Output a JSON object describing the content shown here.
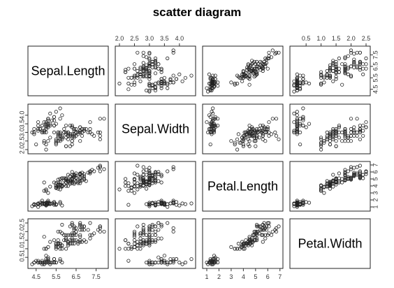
{
  "chart_data": {
    "type": "scatter",
    "title": "scatter diagram",
    "variables": [
      "Sepal.Length",
      "Sepal.Width",
      "Petal.Length",
      "Petal.Width"
    ],
    "ranges": [
      [
        4.3,
        7.9
      ],
      [
        2.0,
        4.4
      ],
      [
        1.0,
        6.9
      ],
      [
        0.1,
        2.5
      ]
    ],
    "ticks": [
      [
        4.5,
        5.5,
        6.5,
        7.5
      ],
      [
        2.0,
        2.5,
        3.0,
        3.5,
        4.0
      ],
      [
        1,
        2,
        3,
        4,
        5,
        6,
        7
      ],
      [
        0.5,
        1.0,
        1.5,
        2.0,
        2.5
      ]
    ],
    "tick_labels": [
      [
        "4.5",
        "5.5",
        "6.5",
        "7.5"
      ],
      [
        "2.0",
        "2.5",
        "3.0",
        "3.5",
        "4.0"
      ],
      [
        "1",
        "2",
        "3",
        "4",
        "5",
        "6",
        "7"
      ],
      [
        "0.5",
        "1.0",
        "1.5",
        "2.0",
        "2.5"
      ]
    ],
    "marker": "open-circle",
    "point_color": "#222222",
    "observations": [
      [
        5.1,
        3.5,
        1.4,
        0.2
      ],
      [
        4.9,
        3.0,
        1.4,
        0.2
      ],
      [
        4.7,
        3.2,
        1.3,
        0.2
      ],
      [
        4.6,
        3.1,
        1.5,
        0.2
      ],
      [
        5.0,
        3.6,
        1.4,
        0.2
      ],
      [
        5.4,
        3.9,
        1.7,
        0.4
      ],
      [
        4.6,
        3.4,
        1.4,
        0.3
      ],
      [
        5.0,
        3.4,
        1.5,
        0.2
      ],
      [
        4.4,
        2.9,
        1.4,
        0.2
      ],
      [
        4.9,
        3.1,
        1.5,
        0.1
      ],
      [
        5.4,
        3.7,
        1.5,
        0.2
      ],
      [
        4.8,
        3.4,
        1.6,
        0.2
      ],
      [
        4.8,
        3.0,
        1.4,
        0.1
      ],
      [
        4.3,
        3.0,
        1.1,
        0.1
      ],
      [
        5.8,
        4.0,
        1.2,
        0.2
      ],
      [
        5.7,
        4.4,
        1.5,
        0.4
      ],
      [
        5.4,
        3.9,
        1.3,
        0.4
      ],
      [
        5.1,
        3.5,
        1.4,
        0.3
      ],
      [
        5.7,
        3.8,
        1.7,
        0.3
      ],
      [
        5.1,
        3.8,
        1.5,
        0.3
      ],
      [
        5.4,
        3.4,
        1.7,
        0.2
      ],
      [
        5.1,
        3.7,
        1.5,
        0.4
      ],
      [
        4.6,
        3.6,
        1.0,
        0.2
      ],
      [
        5.1,
        3.3,
        1.7,
        0.5
      ],
      [
        4.8,
        3.4,
        1.9,
        0.2
      ],
      [
        5.0,
        3.0,
        1.6,
        0.2
      ],
      [
        5.0,
        3.4,
        1.6,
        0.4
      ],
      [
        5.2,
        3.5,
        1.5,
        0.2
      ],
      [
        5.2,
        3.4,
        1.4,
        0.2
      ],
      [
        4.7,
        3.2,
        1.6,
        0.2
      ],
      [
        4.8,
        3.1,
        1.6,
        0.2
      ],
      [
        5.4,
        3.4,
        1.5,
        0.4
      ],
      [
        5.2,
        4.1,
        1.5,
        0.1
      ],
      [
        5.5,
        4.2,
        1.4,
        0.2
      ],
      [
        4.9,
        3.1,
        1.5,
        0.2
      ],
      [
        5.0,
        3.2,
        1.2,
        0.2
      ],
      [
        5.5,
        3.5,
        1.3,
        0.2
      ],
      [
        4.9,
        3.6,
        1.4,
        0.1
      ],
      [
        4.4,
        3.0,
        1.3,
        0.2
      ],
      [
        5.1,
        3.4,
        1.5,
        0.2
      ],
      [
        5.0,
        3.5,
        1.3,
        0.3
      ],
      [
        4.5,
        2.3,
        1.3,
        0.3
      ],
      [
        4.4,
        3.2,
        1.3,
        0.2
      ],
      [
        5.0,
        3.5,
        1.6,
        0.6
      ],
      [
        5.1,
        3.8,
        1.9,
        0.4
      ],
      [
        4.8,
        3.0,
        1.4,
        0.3
      ],
      [
        5.1,
        3.8,
        1.6,
        0.2
      ],
      [
        4.6,
        3.2,
        1.4,
        0.2
      ],
      [
        5.3,
        3.7,
        1.5,
        0.2
      ],
      [
        5.0,
        3.3,
        1.4,
        0.2
      ],
      [
        7.0,
        3.2,
        4.7,
        1.4
      ],
      [
        6.4,
        3.2,
        4.5,
        1.5
      ],
      [
        6.9,
        3.1,
        4.9,
        1.5
      ],
      [
        5.5,
        2.3,
        4.0,
        1.3
      ],
      [
        6.5,
        2.8,
        4.6,
        1.5
      ],
      [
        5.7,
        2.8,
        4.5,
        1.3
      ],
      [
        6.3,
        3.3,
        4.7,
        1.6
      ],
      [
        4.9,
        2.4,
        3.3,
        1.0
      ],
      [
        6.6,
        2.9,
        4.6,
        1.3
      ],
      [
        5.2,
        2.7,
        3.9,
        1.4
      ],
      [
        5.0,
        2.0,
        3.5,
        1.0
      ],
      [
        5.9,
        3.0,
        4.2,
        1.5
      ],
      [
        6.0,
        2.2,
        4.0,
        1.0
      ],
      [
        6.1,
        2.9,
        4.7,
        1.4
      ],
      [
        5.6,
        2.9,
        3.6,
        1.3
      ],
      [
        6.7,
        3.1,
        4.4,
        1.4
      ],
      [
        5.6,
        3.0,
        4.5,
        1.5
      ],
      [
        5.8,
        2.7,
        4.1,
        1.0
      ],
      [
        6.2,
        2.2,
        4.5,
        1.5
      ],
      [
        5.6,
        2.5,
        3.9,
        1.1
      ],
      [
        5.9,
        3.2,
        4.8,
        1.8
      ],
      [
        6.1,
        2.8,
        4.0,
        1.3
      ],
      [
        6.3,
        2.5,
        4.9,
        1.5
      ],
      [
        6.1,
        2.8,
        4.7,
        1.2
      ],
      [
        6.4,
        2.9,
        4.3,
        1.3
      ],
      [
        6.6,
        3.0,
        4.4,
        1.4
      ],
      [
        6.8,
        2.8,
        4.8,
        1.4
      ],
      [
        6.7,
        3.0,
        5.0,
        1.7
      ],
      [
        6.0,
        2.9,
        4.5,
        1.5
      ],
      [
        5.7,
        2.6,
        3.5,
        1.0
      ],
      [
        5.5,
        2.4,
        3.8,
        1.1
      ],
      [
        5.5,
        2.4,
        3.7,
        1.0
      ],
      [
        5.8,
        2.7,
        3.9,
        1.2
      ],
      [
        6.0,
        2.7,
        5.1,
        1.6
      ],
      [
        5.4,
        3.0,
        4.5,
        1.5
      ],
      [
        6.0,
        3.4,
        4.5,
        1.6
      ],
      [
        6.7,
        3.1,
        4.7,
        1.5
      ],
      [
        6.3,
        2.3,
        4.4,
        1.3
      ],
      [
        5.6,
        3.0,
        4.1,
        1.3
      ],
      [
        5.5,
        2.5,
        4.0,
        1.3
      ],
      [
        5.5,
        2.6,
        4.4,
        1.2
      ],
      [
        6.1,
        3.0,
        4.6,
        1.4
      ],
      [
        5.8,
        2.6,
        4.0,
        1.2
      ],
      [
        5.0,
        2.3,
        3.3,
        1.0
      ],
      [
        5.6,
        2.7,
        4.2,
        1.3
      ],
      [
        5.7,
        3.0,
        4.2,
        1.2
      ],
      [
        5.7,
        2.9,
        4.2,
        1.3
      ],
      [
        6.2,
        2.9,
        4.3,
        1.3
      ],
      [
        5.1,
        2.5,
        3.0,
        1.1
      ],
      [
        5.7,
        2.8,
        4.1,
        1.3
      ],
      [
        6.3,
        3.3,
        6.0,
        2.5
      ],
      [
        5.8,
        2.7,
        5.1,
        1.9
      ],
      [
        7.1,
        3.0,
        5.9,
        2.1
      ],
      [
        6.3,
        2.9,
        5.6,
        1.8
      ],
      [
        6.5,
        3.0,
        5.8,
        2.2
      ],
      [
        7.6,
        3.0,
        6.6,
        2.1
      ],
      [
        4.9,
        2.5,
        4.5,
        1.7
      ],
      [
        7.3,
        2.9,
        6.3,
        1.8
      ],
      [
        6.7,
        2.5,
        5.8,
        1.8
      ],
      [
        7.2,
        3.6,
        6.1,
        2.5
      ],
      [
        6.5,
        3.2,
        5.1,
        2.0
      ],
      [
        6.4,
        2.7,
        5.3,
        1.9
      ],
      [
        6.8,
        3.0,
        5.5,
        2.1
      ],
      [
        5.7,
        2.5,
        5.0,
        2.0
      ],
      [
        5.8,
        2.8,
        5.1,
        2.4
      ],
      [
        6.4,
        3.2,
        5.3,
        2.3
      ],
      [
        6.5,
        3.0,
        5.5,
        1.8
      ],
      [
        7.7,
        3.8,
        6.7,
        2.2
      ],
      [
        7.7,
        2.6,
        6.9,
        2.3
      ],
      [
        6.0,
        2.2,
        5.0,
        1.5
      ],
      [
        6.9,
        3.2,
        5.7,
        2.3
      ],
      [
        5.6,
        2.8,
        4.9,
        2.0
      ],
      [
        7.7,
        2.8,
        6.7,
        2.0
      ],
      [
        6.3,
        2.7,
        4.9,
        1.8
      ],
      [
        6.7,
        3.3,
        5.7,
        2.1
      ],
      [
        7.2,
        3.2,
        6.0,
        1.8
      ],
      [
        6.2,
        2.8,
        4.8,
        1.8
      ],
      [
        6.1,
        3.0,
        4.9,
        1.8
      ],
      [
        6.4,
        2.8,
        5.6,
        2.1
      ],
      [
        7.2,
        3.0,
        5.8,
        1.6
      ],
      [
        7.4,
        2.8,
        6.1,
        1.9
      ],
      [
        7.9,
        3.8,
        6.4,
        2.0
      ],
      [
        6.4,
        2.8,
        5.6,
        2.2
      ],
      [
        6.3,
        2.8,
        5.1,
        1.5
      ],
      [
        6.1,
        2.6,
        5.6,
        1.4
      ],
      [
        7.7,
        3.0,
        6.1,
        2.3
      ],
      [
        6.3,
        3.4,
        5.6,
        2.4
      ],
      [
        6.4,
        3.1,
        5.5,
        1.8
      ],
      [
        6.0,
        3.0,
        4.8,
        1.8
      ],
      [
        6.9,
        3.1,
        5.4,
        2.1
      ],
      [
        6.7,
        3.1,
        5.6,
        2.4
      ],
      [
        6.9,
        3.1,
        5.1,
        2.3
      ],
      [
        5.8,
        2.7,
        5.1,
        1.9
      ],
      [
        6.8,
        3.2,
        5.9,
        2.3
      ],
      [
        6.7,
        3.3,
        5.7,
        2.5
      ],
      [
        6.7,
        3.0,
        5.2,
        2.3
      ],
      [
        6.3,
        2.5,
        5.0,
        1.9
      ],
      [
        6.5,
        3.0,
        5.2,
        2.0
      ],
      [
        6.2,
        3.4,
        5.4,
        2.3
      ],
      [
        5.9,
        3.0,
        5.1,
        1.8
      ]
    ]
  }
}
